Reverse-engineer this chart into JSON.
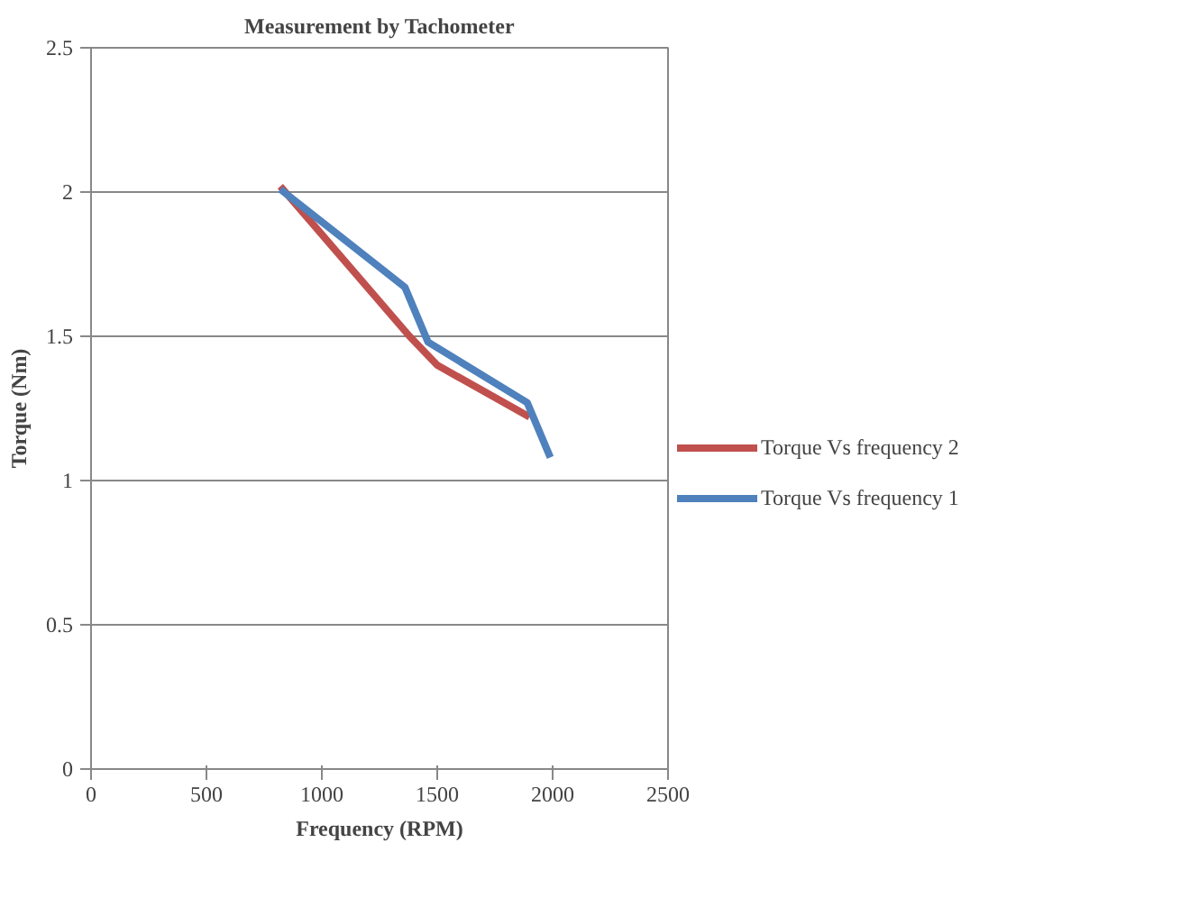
{
  "chart_data": {
    "type": "line",
    "title": "Measurement by Tachometer",
    "xlabel": "Frequency (RPM)",
    "ylabel": "Torque (Nm)",
    "xlim": [
      0,
      2500
    ],
    "xticks": [
      0,
      500,
      1000,
      1500,
      2000,
      2500
    ],
    "ylim": [
      0,
      2.5
    ],
    "yticks": [
      0,
      0.5,
      1,
      1.5,
      2,
      2.5
    ],
    "grid": "y",
    "legend": "right",
    "marker": "none",
    "line_style": "solid",
    "series": [
      {
        "name": "Torque Vs frequency 2",
        "color": "#c0504d",
        "x": [
          820,
          1380,
          1500,
          1900
        ],
        "values": [
          2.02,
          1.5,
          1.4,
          1.22
        ]
      },
      {
        "name": "Torque Vs frequency 1",
        "color": "#4f81bd",
        "x": [
          820,
          1360,
          1460,
          1890,
          1990
        ],
        "values": [
          2.01,
          1.67,
          1.48,
          1.27,
          1.08
        ]
      }
    ]
  }
}
